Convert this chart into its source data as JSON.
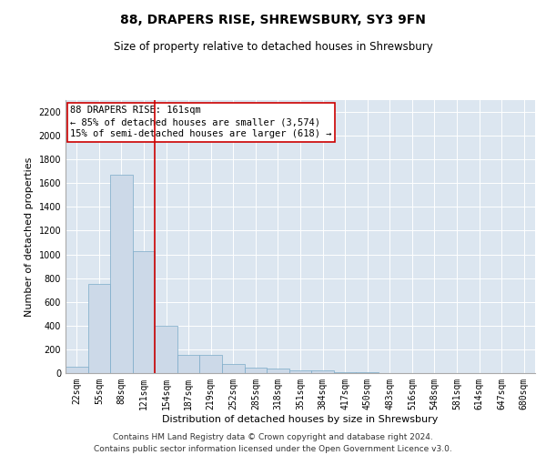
{
  "title1": "88, DRAPERS RISE, SHREWSBURY, SY3 9FN",
  "title2": "Size of property relative to detached houses in Shrewsbury",
  "xlabel": "Distribution of detached houses by size in Shrewsbury",
  "ylabel": "Number of detached properties",
  "categories": [
    "22sqm",
    "55sqm",
    "88sqm",
    "121sqm",
    "154sqm",
    "187sqm",
    "219sqm",
    "252sqm",
    "285sqm",
    "318sqm",
    "351sqm",
    "384sqm",
    "417sqm",
    "450sqm",
    "483sqm",
    "516sqm",
    "548sqm",
    "581sqm",
    "614sqm",
    "647sqm",
    "680sqm"
  ],
  "values": [
    50,
    750,
    1670,
    1030,
    400,
    150,
    150,
    75,
    45,
    35,
    25,
    20,
    10,
    5,
    3,
    2,
    2,
    1,
    1,
    0,
    0
  ],
  "bar_color": "#ccd9e8",
  "bar_edge_color": "#7aaac8",
  "vline_x": 3.5,
  "vline_color": "#cc0000",
  "annotation_line1": "88 DRAPERS RISE: 161sqm",
  "annotation_line2": "← 85% of detached houses are smaller (3,574)",
  "annotation_line3": "15% of semi-detached houses are larger (618) →",
  "annotation_box_color": "#ffffff",
  "annotation_box_edge": "#cc0000",
  "ylim": [
    0,
    2300
  ],
  "yticks": [
    0,
    200,
    400,
    600,
    800,
    1000,
    1200,
    1400,
    1600,
    1800,
    2000,
    2200
  ],
  "background_color": "#dce6f0",
  "footer1": "Contains HM Land Registry data © Crown copyright and database right 2024.",
  "footer2": "Contains public sector information licensed under the Open Government Licence v3.0.",
  "title1_fontsize": 10,
  "title2_fontsize": 8.5,
  "xlabel_fontsize": 8,
  "ylabel_fontsize": 8,
  "tick_fontsize": 7,
  "annotation_fontsize": 7.5,
  "footer_fontsize": 6.5
}
